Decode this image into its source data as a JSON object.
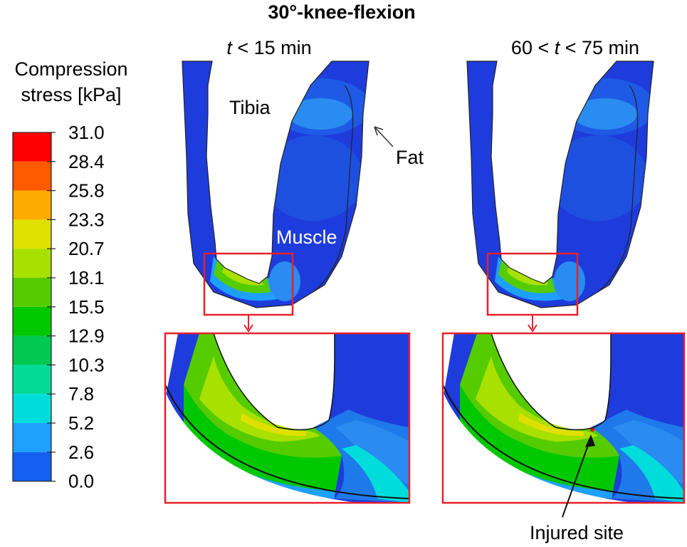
{
  "title": "30°-knee-flexion",
  "legend": {
    "heading_line1": "Compression",
    "heading_line2": "stress [kPa]",
    "ticks": [
      "31.0",
      "28.4",
      "25.8",
      "23.3",
      "20.7",
      "18.1",
      "15.5",
      "12.9",
      "10.3",
      "7.8",
      "5.2",
      "2.6",
      "0.0"
    ],
    "colors": [
      "#ff0000",
      "#ff5a00",
      "#ffaa00",
      "#e0e000",
      "#a8e000",
      "#55cc00",
      "#00c800",
      "#00c850",
      "#00dc96",
      "#00dcdc",
      "#1ea0ff",
      "#1460f0",
      "#0000ff"
    ]
  },
  "panels": [
    {
      "time_label_pre": "t",
      "time_label_post": " < 15 min"
    },
    {
      "time_label_pre": "60 < ",
      "time_label_mid": "t",
      "time_label_post": " < 75 min"
    }
  ],
  "labels": {
    "tibia": "Tibia",
    "fat": "Fat",
    "muscle": "Muscle",
    "injured": "Injured site"
  },
  "colors": {
    "highlight": "#e8202a",
    "base_tissue": "#1e3cdc",
    "arrow": "#111111"
  }
}
